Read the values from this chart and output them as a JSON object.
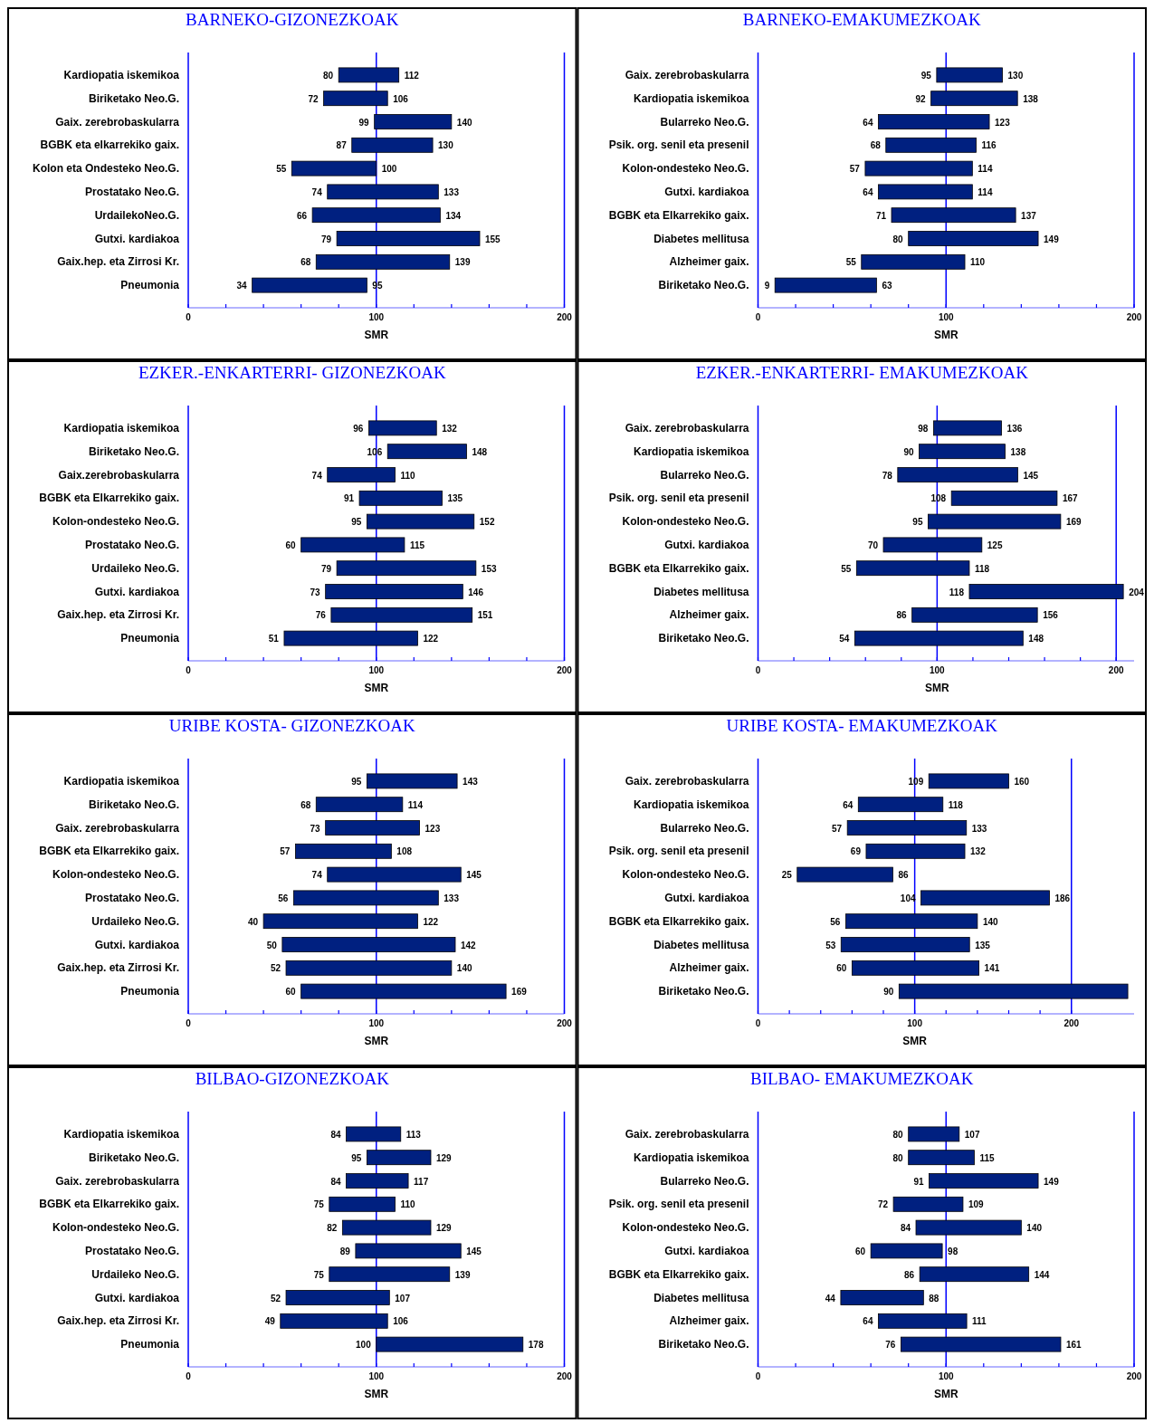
{
  "chart_data": [
    {
      "type": "bar",
      "orientation": "horizontal",
      "title": "BARNEKO-GIZONEZKOAK",
      "xlabel": "SMR",
      "color": "#002080",
      "xlim": [
        0,
        200
      ],
      "xticks": [
        0,
        {
          "value": 20,
          "label": null
        },
        {
          "value": 40,
          "label": null
        },
        {
          "value": 60,
          "label": null
        },
        {
          "value": 80,
          "label": null
        },
        100,
        {
          "value": 120,
          "label": null
        },
        {
          "value": 140,
          "label": null
        },
        {
          "value": 160,
          "label": null
        },
        {
          "value": 180,
          "label": null
        },
        200
      ],
      "ref_lines": [
        {
          "axis": "x",
          "value": 100,
          "color": "#0000ff"
        },
        {
          "axis": "x",
          "value": 200,
          "color": "#0000ff"
        }
      ],
      "categories": [
        "Kardiopatia iskemikoa",
        "Biriketako Neo.G.",
        "Gaix. zerebrobaskularra",
        "BGBK eta elkarrekiko gaix.",
        "Kolon eta Ondesteko Neo.G.",
        "Prostatako Neo.G.",
        "UrdailekoNeo.G.",
        "Gutxi. kardiakoa",
        "Gaix.hep. eta Zirrosi Kr.",
        "Pneumonia"
      ],
      "base": [
        80,
        72,
        99,
        87,
        55,
        74,
        66,
        79,
        68,
        34
      ],
      "values": [
        32,
        34,
        41,
        43,
        45,
        59,
        68,
        76,
        71,
        61
      ],
      "annotations": [
        {
          "text": "80",
          "x": 80,
          "y": "Kardiopatia iskemikoa"
        },
        {
          "text": "112",
          "x": 112,
          "y": "Kardiopatia iskemikoa"
        },
        {
          "text": "72",
          "x": 72,
          "y": "Biriketako Neo.G."
        },
        {
          "text": "106",
          "x": 106,
          "y": "Biriketako Neo.G."
        },
        {
          "text": "99",
          "x": 99,
          "y": "Gaix. zerebrobaskularra"
        },
        {
          "text": "140",
          "x": 140,
          "y": "Gaix. zerebrobaskularra"
        },
        {
          "text": "87",
          "x": 87,
          "y": "BGBK eta elkarrekiko gaix."
        },
        {
          "text": "130",
          "x": 130,
          "y": "BGBK eta elkarrekiko gaix."
        },
        {
          "text": "55",
          "x": 55,
          "y": "Kolon eta Ondesteko Neo.G."
        },
        {
          "text": "100",
          "x": 100,
          "y": "Kolon eta Ondesteko Neo.G."
        },
        {
          "text": "74",
          "x": 74,
          "y": "Prostatako Neo.G."
        },
        {
          "text": "133",
          "x": 133,
          "y": "Prostatako Neo.G."
        },
        {
          "text": "66",
          "x": 66,
          "y": "UrdailekoNeo.G."
        },
        {
          "text": "134",
          "x": 134,
          "y": "UrdailekoNeo.G."
        },
        {
          "text": "79",
          "x": 79,
          "y": "Gutxi. kardiakoa"
        },
        {
          "text": "155",
          "x": 155,
          "y": "Gutxi. kardiakoa"
        },
        {
          "text": "68",
          "x": 68,
          "y": "Gaix.hep. eta Zirrosi Kr."
        },
        {
          "text": "139",
          "x": 139,
          "y": "Gaix.hep. eta Zirrosi Kr."
        },
        {
          "text": "34",
          "x": 34,
          "y": "Pneumonia"
        },
        {
          "text": "95",
          "x": 95,
          "y": "Pneumonia"
        }
      ]
    },
    {
      "type": "bar",
      "orientation": "horizontal",
      "title": "BARNEKO-EMAKUMEZKOAK",
      "xlabel": "SMR",
      "color": "#002080",
      "xlim": [
        0,
        200
      ],
      "xticks": [
        0,
        {
          "value": 20,
          "label": null
        },
        {
          "value": 40,
          "label": null
        },
        {
          "value": 60,
          "label": null
        },
        {
          "value": 80,
          "label": null
        },
        100,
        {
          "value": 120,
          "label": null
        },
        {
          "value": 140,
          "label": null
        },
        {
          "value": 160,
          "label": null
        },
        {
          "value": 180,
          "label": null
        },
        200
      ],
      "ref_lines": [
        {
          "axis": "x",
          "value": 100,
          "color": "#0000ff"
        },
        {
          "axis": "x",
          "value": 200,
          "color": "#0000ff"
        }
      ],
      "categories": [
        "Gaix. zerebrobaskularra",
        "Kardiopatia iskemikoa",
        "Bularreko Neo.G.",
        "Psik. org. senil eta presenil",
        "Kolon-ondesteko Neo.G.",
        "Gutxi. kardiakoa",
        "BGBK eta Elkarrekiko gaix.",
        "Diabetes mellitusa",
        "Alzheimer gaix.",
        "Biriketako Neo.G."
      ],
      "base": [
        95,
        92,
        64,
        68,
        57,
        64,
        71,
        80,
        55,
        9
      ],
      "values": [
        35,
        46,
        59,
        48,
        57,
        50,
        66,
        69,
        55,
        54
      ],
      "annotations": [
        {
          "text": "95",
          "x": 95,
          "y": "Gaix. zerebrobaskularra"
        },
        {
          "text": "130",
          "x": 130,
          "y": "Gaix. zerebrobaskularra"
        },
        {
          "text": "92",
          "x": 92,
          "y": "Kardiopatia iskemikoa"
        },
        {
          "text": "138",
          "x": 138,
          "y": "Kardiopatia iskemikoa"
        },
        {
          "text": "64",
          "x": 64,
          "y": "Bularreko Neo.G."
        },
        {
          "text": "123",
          "x": 123,
          "y": "Bularreko Neo.G."
        },
        {
          "text": "68",
          "x": 68,
          "y": "Psik. org. senil eta presenil"
        },
        {
          "text": "116",
          "x": 116,
          "y": "Psik. org. senil eta presenil"
        },
        {
          "text": "57",
          "x": 57,
          "y": "Kolon-ondesteko Neo.G."
        },
        {
          "text": "114",
          "x": 114,
          "y": "Kolon-ondesteko Neo.G."
        },
        {
          "text": "64",
          "x": 64,
          "y": "Gutxi. kardiakoa"
        },
        {
          "text": "114",
          "x": 114,
          "y": "Gutxi. kardiakoa"
        },
        {
          "text": "71",
          "x": 71,
          "y": "BGBK eta Elkarrekiko gaix."
        },
        {
          "text": "137",
          "x": 137,
          "y": "BGBK eta Elkarrekiko gaix."
        },
        {
          "text": "80",
          "x": 80,
          "y": "Diabetes mellitusa"
        },
        {
          "text": "149",
          "x": 149,
          "y": "Diabetes mellitusa"
        },
        {
          "text": "55",
          "x": 55,
          "y": "Alzheimer gaix."
        },
        {
          "text": "110",
          "x": 110,
          "y": "Alzheimer gaix."
        },
        {
          "text": "9",
          "x": 9,
          "y": "Biriketako Neo.G."
        },
        {
          "text": "63",
          "x": 63,
          "y": "Biriketako Neo.G."
        }
      ]
    },
    {
      "type": "bar",
      "orientation": "horizontal",
      "title": "EZKER.-ENKARTERRI- GIZONEZKOAK",
      "xlabel": "SMR",
      "color": "#002080",
      "xlim": [
        0,
        200
      ],
      "xticks": [
        0,
        {
          "value": 20,
          "label": null
        },
        {
          "value": 40,
          "label": null
        },
        {
          "value": 60,
          "label": null
        },
        {
          "value": 80,
          "label": null
        },
        100,
        {
          "value": 120,
          "label": null
        },
        {
          "value": 140,
          "label": null
        },
        {
          "value": 160,
          "label": null
        },
        {
          "value": 180,
          "label": null
        },
        200
      ],
      "ref_lines": [
        {
          "axis": "x",
          "value": 100,
          "color": "#0000ff"
        },
        {
          "axis": "x",
          "value": 200,
          "color": "#0000ff"
        }
      ],
      "categories": [
        "Kardiopatia iskemikoa",
        "Biriketako Neo.G.",
        "Gaix.zerebrobaskularra",
        "BGBK eta Elkarrekiko gaix.",
        "Kolon-ondesteko Neo.G.",
        "Prostatako Neo.G.",
        "Urdaileko Neo.G.",
        "Gutxi. kardiakoa",
        "Gaix.hep. eta Zirrosi Kr.",
        "Pneumonia"
      ],
      "base": [
        96,
        106,
        74,
        91,
        95,
        60,
        79,
        73,
        76,
        51
      ],
      "values": [
        36,
        42,
        36,
        44,
        57,
        55,
        74,
        73,
        75,
        71
      ],
      "annotations": [
        {
          "text": "96",
          "x": 96,
          "y": "Kardiopatia iskemikoa"
        },
        {
          "text": "132",
          "x": 132,
          "y": "Kardiopatia iskemikoa"
        },
        {
          "text": "106",
          "x": 106,
          "y": "Biriketako Neo.G."
        },
        {
          "text": "148",
          "x": 148,
          "y": "Biriketako Neo.G."
        },
        {
          "text": "74",
          "x": 74,
          "y": "Gaix.zerebrobaskularra"
        },
        {
          "text": "110",
          "x": 110,
          "y": "Gaix.zerebrobaskularra"
        },
        {
          "text": "91",
          "x": 91,
          "y": "BGBK eta Elkarrekiko gaix."
        },
        {
          "text": "135",
          "x": 135,
          "y": "BGBK eta Elkarrekiko gaix."
        },
        {
          "text": "95",
          "x": 95,
          "y": "Kolon-ondesteko Neo.G."
        },
        {
          "text": "152",
          "x": 152,
          "y": "Kolon-ondesteko Neo.G."
        },
        {
          "text": "60",
          "x": 60,
          "y": "Prostatako Neo.G."
        },
        {
          "text": "115",
          "x": 115,
          "y": "Prostatako Neo.G."
        },
        {
          "text": "79",
          "x": 79,
          "y": "Urdaileko Neo.G."
        },
        {
          "text": "153",
          "x": 153,
          "y": "Urdaileko Neo.G."
        },
        {
          "text": "73",
          "x": 73,
          "y": "Gutxi. kardiakoa"
        },
        {
          "text": "146",
          "x": 146,
          "y": "Gutxi. kardiakoa"
        },
        {
          "text": "76",
          "x": 76,
          "y": "Gaix.hep. eta Zirrosi Kr."
        },
        {
          "text": "151",
          "x": 151,
          "y": "Gaix.hep. eta Zirrosi Kr."
        },
        {
          "text": "51",
          "x": 51,
          "y": "Pneumonia"
        },
        {
          "text": "122",
          "x": 122,
          "y": "Pneumonia"
        }
      ]
    },
    {
      "type": "bar",
      "orientation": "horizontal",
      "title": "EZKER.-ENKARTERRI- EMAKUMEZKOAK",
      "xlabel": "SMR",
      "color": "#002080",
      "xlim": [
        0,
        210
      ],
      "xticks": [
        0,
        {
          "value": 20,
          "label": null
        },
        {
          "value": 40,
          "label": null
        },
        {
          "value": 60,
          "label": null
        },
        {
          "value": 80,
          "label": null
        },
        100,
        {
          "value": 120,
          "label": null
        },
        {
          "value": 140,
          "label": null
        },
        {
          "value": 160,
          "label": null
        },
        {
          "value": 180,
          "label": null
        },
        200
      ],
      "ref_lines": [
        {
          "axis": "x",
          "value": 100,
          "color": "#0000ff"
        },
        {
          "axis": "x",
          "value": 200,
          "color": "#0000ff"
        }
      ],
      "categories": [
        "Gaix. zerebrobaskularra",
        "Kardiopatia iskemikoa",
        "Bularreko Neo.G.",
        "Psik. org. senil eta presenil",
        "Kolon-ondesteko Neo.G.",
        "Gutxi. kardiakoa",
        "BGBK eta Elkarrekiko gaix.",
        "Diabetes mellitusa",
        "Alzheimer  gaix.",
        "Biriketako Neo.G."
      ],
      "base": [
        98,
        90,
        78,
        108,
        95,
        70,
        55,
        118,
        86,
        54
      ],
      "values": [
        38,
        48,
        67,
        59,
        74,
        55,
        63,
        86,
        70,
        94
      ],
      "annotations": [
        {
          "text": "98",
          "x": 98,
          "y": "Gaix. zerebrobaskularra"
        },
        {
          "text": "136",
          "x": 136,
          "y": "Gaix. zerebrobaskularra"
        },
        {
          "text": "90",
          "x": 90,
          "y": "Kardiopatia iskemikoa"
        },
        {
          "text": "138",
          "x": 138,
          "y": "Kardiopatia iskemikoa"
        },
        {
          "text": "78",
          "x": 78,
          "y": "Bularreko Neo.G."
        },
        {
          "text": "145",
          "x": 145,
          "y": "Bularreko Neo.G."
        },
        {
          "text": "108",
          "x": 108,
          "y": "Psik. org. senil eta presenil"
        },
        {
          "text": "167",
          "x": 167,
          "y": "Psik. org. senil eta presenil"
        },
        {
          "text": "95",
          "x": 95,
          "y": "Kolon-ondesteko Neo.G."
        },
        {
          "text": "169",
          "x": 169,
          "y": "Kolon-ondesteko Neo.G."
        },
        {
          "text": "70",
          "x": 70,
          "y": "Gutxi. kardiakoa"
        },
        {
          "text": "125",
          "x": 125,
          "y": "Gutxi. kardiakoa"
        },
        {
          "text": "55",
          "x": 55,
          "y": "BGBK eta Elkarrekiko gaix."
        },
        {
          "text": "118",
          "x": 118,
          "y": "BGBK eta Elkarrekiko gaix."
        },
        {
          "text": "118",
          "x": 118,
          "y": "Diabetes mellitusa"
        },
        {
          "text": "204",
          "x": 204,
          "y": "Diabetes mellitusa"
        },
        {
          "text": "86",
          "x": 86,
          "y": "Alzheimer  gaix."
        },
        {
          "text": "156",
          "x": 156,
          "y": "Alzheimer  gaix."
        },
        {
          "text": "54",
          "x": 54,
          "y": "Biriketako Neo.G."
        },
        {
          "text": "148",
          "x": 148,
          "y": "Biriketako Neo.G."
        }
      ]
    },
    {
      "type": "bar",
      "orientation": "horizontal",
      "title": "URIBE KOSTA- GIZONEZKOAK",
      "xlabel": "SMR",
      "color": "#002080",
      "xlim": [
        0,
        200
      ],
      "xticks": [
        0,
        {
          "value": 20,
          "label": null
        },
        {
          "value": 40,
          "label": null
        },
        {
          "value": 60,
          "label": null
        },
        {
          "value": 80,
          "label": null
        },
        100,
        {
          "value": 120,
          "label": null
        },
        {
          "value": 140,
          "label": null
        },
        {
          "value": 160,
          "label": null
        },
        {
          "value": 180,
          "label": null
        },
        200
      ],
      "ref_lines": [
        {
          "axis": "x",
          "value": 100,
          "color": "#0000ff"
        },
        {
          "axis": "x",
          "value": 200,
          "color": "#0000ff"
        }
      ],
      "categories": [
        "Kardiopatia iskemikoa",
        "Biriketako Neo.G.",
        "Gaix. zerebrobaskularra",
        "BGBK eta Elkarrekiko gaix.",
        "Kolon-ondesteko Neo.G.",
        "Prostatako Neo.G.",
        "Urdaileko Neo.G.",
        "Gutxi. kardiakoa",
        "Gaix.hep. eta Zirrosi Kr.",
        "Pneumonia"
      ],
      "base": [
        95,
        68,
        73,
        57,
        74,
        56,
        40,
        50,
        52,
        60
      ],
      "values": [
        48,
        46,
        50,
        51,
        71,
        77,
        82,
        92,
        88,
        109
      ],
      "annotations": [
        {
          "text": "95",
          "x": 95,
          "y": "Kardiopatia iskemikoa"
        },
        {
          "text": "143",
          "x": 143,
          "y": "Kardiopatia iskemikoa"
        },
        {
          "text": "68",
          "x": 68,
          "y": "Biriketako Neo.G."
        },
        {
          "text": "114",
          "x": 114,
          "y": "Biriketako Neo.G."
        },
        {
          "text": "73",
          "x": 73,
          "y": "Gaix. zerebrobaskularra"
        },
        {
          "text": "123",
          "x": 123,
          "y": "Gaix. zerebrobaskularra"
        },
        {
          "text": "57",
          "x": 57,
          "y": "BGBK eta Elkarrekiko gaix."
        },
        {
          "text": "108",
          "x": 108,
          "y": "BGBK eta Elkarrekiko gaix."
        },
        {
          "text": "74",
          "x": 74,
          "y": "Kolon-ondesteko Neo.G."
        },
        {
          "text": "145",
          "x": 145,
          "y": "Kolon-ondesteko Neo.G."
        },
        {
          "text": "56",
          "x": 56,
          "y": "Prostatako Neo.G."
        },
        {
          "text": "133",
          "x": 133,
          "y": "Prostatako Neo.G."
        },
        {
          "text": "40",
          "x": 40,
          "y": "Urdaileko Neo.G."
        },
        {
          "text": "122",
          "x": 122,
          "y": "Urdaileko Neo.G."
        },
        {
          "text": "50",
          "x": 50,
          "y": "Gutxi. kardiakoa"
        },
        {
          "text": "142",
          "x": 142,
          "y": "Gutxi. kardiakoa"
        },
        {
          "text": "52",
          "x": 52,
          "y": "Gaix.hep. eta Zirrosi Kr."
        },
        {
          "text": "140",
          "x": 140,
          "y": "Gaix.hep. eta Zirrosi Kr."
        },
        {
          "text": "60",
          "x": 60,
          "y": "Pneumonia"
        },
        {
          "text": "169",
          "x": 169,
          "y": "Pneumonia"
        }
      ]
    },
    {
      "type": "bar",
      "orientation": "horizontal",
      "title": "URIBE KOSTA- EMAKUMEZKOAK",
      "xlabel": "SMR",
      "color": "#002080",
      "xlim": [
        0,
        240
      ],
      "xticks": [
        0,
        {
          "value": 20,
          "label": null
        },
        {
          "value": 40,
          "label": null
        },
        {
          "value": 60,
          "label": null
        },
        {
          "value": 80,
          "label": null
        },
        100,
        {
          "value": 120,
          "label": null
        },
        {
          "value": 140,
          "label": null
        },
        {
          "value": 160,
          "label": null
        },
        {
          "value": 180,
          "label": null
        },
        200
      ],
      "ref_lines": [
        {
          "axis": "x",
          "value": 100,
          "color": "#0000ff"
        },
        {
          "axis": "x",
          "value": 200,
          "color": "#0000ff"
        }
      ],
      "categories": [
        "Gaix. zerebrobaskularra",
        "Kardiopatia iskemikoa",
        "Bularreko Neo.G.",
        "Psik. org. senil eta presenil",
        "Kolon-ondesteko Neo.G.",
        "Gutxi. kardiakoa",
        "BGBK eta Elkarrekiko gaix.",
        "Diabetes mellitusa",
        "Alzheimer gaix.",
        "Biriketako Neo.G."
      ],
      "base": [
        109,
        64,
        57,
        69,
        25,
        104,
        56,
        53,
        60,
        90
      ],
      "values": [
        51,
        54,
        76,
        63,
        61,
        82,
        84,
        82,
        81,
        146
      ],
      "annotations": [
        {
          "text": "109",
          "x": 109,
          "y": "Gaix. zerebrobaskularra"
        },
        {
          "text": "160",
          "x": 160,
          "y": "Gaix. zerebrobaskularra"
        },
        {
          "text": "64",
          "x": 64,
          "y": "Kardiopatia iskemikoa"
        },
        {
          "text": "118",
          "x": 118,
          "y": "Kardiopatia iskemikoa"
        },
        {
          "text": "57",
          "x": 57,
          "y": "Bularreko Neo.G."
        },
        {
          "text": "133",
          "x": 133,
          "y": "Bularreko Neo.G."
        },
        {
          "text": "69",
          "x": 69,
          "y": "Psik. org. senil eta presenil"
        },
        {
          "text": "132",
          "x": 132,
          "y": "Psik. org. senil eta presenil"
        },
        {
          "text": "25",
          "x": 25,
          "y": "Kolon-ondesteko Neo.G."
        },
        {
          "text": "86",
          "x": 86,
          "y": "Kolon-ondesteko Neo.G."
        },
        {
          "text": "104",
          "x": 104,
          "y": "Gutxi. kardiakoa"
        },
        {
          "text": "186",
          "x": 186,
          "y": "Gutxi. kardiakoa"
        },
        {
          "text": "56",
          "x": 56,
          "y": "BGBK eta Elkarrekiko gaix."
        },
        {
          "text": "140",
          "x": 140,
          "y": "BGBK eta Elkarrekiko gaix."
        },
        {
          "text": "53",
          "x": 53,
          "y": "Diabetes mellitusa"
        },
        {
          "text": "135",
          "x": 135,
          "y": "Diabetes mellitusa"
        },
        {
          "text": "60",
          "x": 60,
          "y": "Alzheimer gaix."
        },
        {
          "text": "141",
          "x": 141,
          "y": "Alzheimer gaix."
        },
        {
          "text": "90",
          "x": 90,
          "y": "Biriketako Neo.G."
        }
      ]
    },
    {
      "type": "bar",
      "orientation": "horizontal",
      "title": "BILBAO-GIZONEZKOAK",
      "xlabel": "SMR",
      "color": "#002080",
      "xlim": [
        0,
        200
      ],
      "xticks": [
        0,
        {
          "value": 20,
          "label": null
        },
        {
          "value": 40,
          "label": null
        },
        {
          "value": 60,
          "label": null
        },
        {
          "value": 80,
          "label": null
        },
        100,
        {
          "value": 120,
          "label": null
        },
        {
          "value": 140,
          "label": null
        },
        {
          "value": 160,
          "label": null
        },
        {
          "value": 180,
          "label": null
        },
        200
      ],
      "ref_lines": [
        {
          "axis": "x",
          "value": 100,
          "color": "#0000ff"
        },
        {
          "axis": "x",
          "value": 200,
          "color": "#0000ff"
        }
      ],
      "categories": [
        "Kardiopatia iskemikoa",
        "Biriketako Neo.G.",
        "Gaix. zerebrobaskularra",
        "BGBK eta Elkarrekiko gaix.",
        "Kolon-ondesteko Neo.G.",
        "Prostatako Neo.G.",
        "Urdaileko Neo.G.",
        "Gutxi. kardiakoa",
        "Gaix.hep. eta Zirrosi Kr.",
        "Pneumonia"
      ],
      "base": [
        84,
        95,
        84,
        75,
        82,
        89,
        75,
        52,
        49,
        100
      ],
      "values": [
        29,
        34,
        33,
        35,
        47,
        56,
        64,
        55,
        57,
        78
      ],
      "annotations": [
        {
          "text": "84",
          "x": 84,
          "y": "Kardiopatia iskemikoa"
        },
        {
          "text": "113",
          "x": 113,
          "y": "Kardiopatia iskemikoa"
        },
        {
          "text": "95",
          "x": 95,
          "y": "Biriketako Neo.G."
        },
        {
          "text": "129",
          "x": 129,
          "y": "Biriketako Neo.G."
        },
        {
          "text": "84",
          "x": 84,
          "y": "Gaix. zerebrobaskularra"
        },
        {
          "text": "117",
          "x": 117,
          "y": "Gaix. zerebrobaskularra"
        },
        {
          "text": "75",
          "x": 75,
          "y": "BGBK eta Elkarrekiko gaix."
        },
        {
          "text": "110",
          "x": 110,
          "y": "BGBK eta Elkarrekiko gaix."
        },
        {
          "text": "82",
          "x": 82,
          "y": "Kolon-ondesteko Neo.G."
        },
        {
          "text": "129",
          "x": 129,
          "y": "Kolon-ondesteko Neo.G."
        },
        {
          "text": "89",
          "x": 89,
          "y": "Prostatako Neo.G."
        },
        {
          "text": "145",
          "x": 145,
          "y": "Prostatako Neo.G."
        },
        {
          "text": "75",
          "x": 75,
          "y": "Urdaileko Neo.G."
        },
        {
          "text": "139",
          "x": 139,
          "y": "Urdaileko Neo.G."
        },
        {
          "text": "52",
          "x": 52,
          "y": "Gutxi. kardiakoa"
        },
        {
          "text": "107",
          "x": 107,
          "y": "Gutxi. kardiakoa"
        },
        {
          "text": "49",
          "x": 49,
          "y": "Gaix.hep. eta Zirrosi Kr."
        },
        {
          "text": "106",
          "x": 106,
          "y": "Gaix.hep. eta Zirrosi Kr."
        },
        {
          "text": "100",
          "x": 100,
          "y": "Pneumonia"
        },
        {
          "text": "178",
          "x": 178,
          "y": "Pneumonia"
        }
      ]
    },
    {
      "type": "bar",
      "orientation": "horizontal",
      "title": "BILBAO- EMAKUMEZKOAK",
      "xlabel": "SMR",
      "color": "#002080",
      "xlim": [
        0,
        200
      ],
      "xticks": [
        0,
        {
          "value": 20,
          "label": null
        },
        {
          "value": 40,
          "label": null
        },
        {
          "value": 60,
          "label": null
        },
        {
          "value": 80,
          "label": null
        },
        100,
        {
          "value": 120,
          "label": null
        },
        {
          "value": 140,
          "label": null
        },
        {
          "value": 160,
          "label": null
        },
        {
          "value": 180,
          "label": null
        },
        200
      ],
      "ref_lines": [
        {
          "axis": "x",
          "value": 100,
          "color": "#0000ff"
        },
        {
          "axis": "x",
          "value": 200,
          "color": "#0000ff"
        }
      ],
      "categories": [
        "Gaix. zerebrobaskularra",
        "Kardiopatia iskemikoa",
        "Bularreko Neo.G.",
        "Psik. org. senil eta presenil",
        "Kolon-ondesteko Neo.G.",
        "Gutxi. kardiakoa",
        "BGBK eta Elkarrekiko gaix.",
        "Diabetes mellitusa",
        "Alzheimer  gaix.",
        "Biriketako Neo.G."
      ],
      "base": [
        80,
        80,
        91,
        72,
        84,
        60,
        86,
        44,
        64,
        76
      ],
      "values": [
        27,
        35,
        58,
        37,
        56,
        38,
        58,
        44,
        47,
        85
      ],
      "annotations": [
        {
          "text": "80",
          "x": 80,
          "y": "Gaix. zerebrobaskularra"
        },
        {
          "text": "107",
          "x": 107,
          "y": "Gaix. zerebrobaskularra"
        },
        {
          "text": "80",
          "x": 80,
          "y": "Kardiopatia iskemikoa"
        },
        {
          "text": "115",
          "x": 115,
          "y": "Kardiopatia iskemikoa"
        },
        {
          "text": "91",
          "x": 91,
          "y": "Bularreko Neo.G."
        },
        {
          "text": "149",
          "x": 149,
          "y": "Bularreko Neo.G."
        },
        {
          "text": "72",
          "x": 72,
          "y": "Psik. org. senil eta presenil"
        },
        {
          "text": "109",
          "x": 109,
          "y": "Psik. org. senil eta presenil"
        },
        {
          "text": "84",
          "x": 84,
          "y": "Kolon-ondesteko Neo.G."
        },
        {
          "text": "140",
          "x": 140,
          "y": "Kolon-ondesteko Neo.G."
        },
        {
          "text": "60",
          "x": 60,
          "y": "Gutxi. kardiakoa"
        },
        {
          "text": "98",
          "x": 98,
          "y": "Gutxi. kardiakoa"
        },
        {
          "text": "86",
          "x": 86,
          "y": "BGBK eta Elkarrekiko gaix."
        },
        {
          "text": "144",
          "x": 144,
          "y": "BGBK eta Elkarrekiko gaix."
        },
        {
          "text": "44",
          "x": 44,
          "y": "Diabetes mellitusa"
        },
        {
          "text": "88",
          "x": 88,
          "y": "Diabetes mellitusa"
        },
        {
          "text": "64",
          "x": 64,
          "y": "Alzheimer  gaix."
        },
        {
          "text": "111",
          "x": 111,
          "y": "Alzheimer  gaix."
        },
        {
          "text": "76",
          "x": 76,
          "y": "Biriketako Neo.G."
        },
        {
          "text": "161",
          "x": 161,
          "y": "Biriketako Neo.G."
        }
      ]
    }
  ]
}
